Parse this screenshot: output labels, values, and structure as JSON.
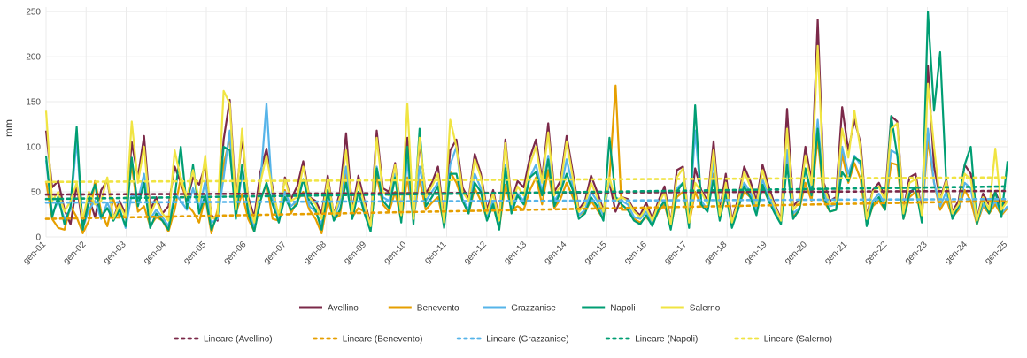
{
  "chart_data": {
    "type": "line",
    "title": "",
    "xlabel": "",
    "ylabel": "mm",
    "ylim": [
      0,
      255
    ],
    "xlim": [
      0,
      24
    ],
    "y_ticks": [
      0,
      50,
      100,
      150,
      200,
      250
    ],
    "x_ticks": [
      "gen-01",
      "gen-02",
      "gen-03",
      "gen-04",
      "gen-05",
      "gen-06",
      "gen-07",
      "gen-08",
      "gen-09",
      "gen-10",
      "gen-11",
      "gen-12",
      "gen-13",
      "gen-14",
      "gen-15",
      "gen-16",
      "gen-17",
      "gen-18",
      "gen-19",
      "gen-20",
      "gen-21",
      "gen-22",
      "gen-23",
      "gen-24",
      "gen-25"
    ],
    "grid": true,
    "legend_placement": "bottom",
    "series": [
      {
        "name": "Avellino",
        "color": "#7b2949",
        "values": [
          118,
          55,
          62,
          30,
          14,
          58,
          12,
          44,
          22,
          52,
          63,
          20,
          40,
          25,
          105,
          66,
          112,
          30,
          44,
          26,
          34,
          78,
          60,
          40,
          66,
          58,
          80,
          24,
          18,
          108,
          152,
          40,
          110,
          44,
          22,
          72,
          98,
          54,
          20,
          66,
          42,
          56,
          84,
          44,
          40,
          26,
          68,
          24,
          50,
          115,
          30,
          68,
          40,
          14,
          118,
          54,
          50,
          82,
          26,
          110,
          20,
          104,
          48,
          60,
          78,
          18,
          96,
          108,
          55,
          42,
          92,
          70,
          30,
          52,
          20,
          108,
          40,
          62,
          55,
          88,
          108,
          64,
          126,
          50,
          62,
          112,
          72,
          30,
          40,
          68,
          50,
          30,
          60,
          28,
          44,
          42,
          30,
          24,
          38,
          20,
          40,
          56,
          15,
          74,
          78,
          18,
          76,
          52,
          40,
          106,
          28,
          70,
          18,
          42,
          78,
          62,
          40,
          80,
          56,
          36,
          20,
          142,
          34,
          42,
          100,
          62,
          241,
          60,
          40,
          44,
          144,
          96,
          130,
          104,
          22,
          52,
          60,
          44,
          134,
          128,
          30,
          66,
          70,
          28,
          190,
          78,
          42,
          64,
          28,
          40,
          80,
          70,
          20,
          48,
          36,
          50,
          34,
          40
        ]
      },
      {
        "name": "Benevento",
        "color": "#e69f00",
        "values": [
          62,
          20,
          10,
          8,
          34,
          22,
          4,
          18,
          62,
          28,
          12,
          42,
          22,
          24,
          80,
          28,
          34,
          12,
          22,
          18,
          6,
          30,
          66,
          36,
          28,
          16,
          44,
          4,
          30,
          80,
          110,
          26,
          48,
          20,
          6,
          40,
          60,
          20,
          18,
          52,
          26,
          40,
          50,
          30,
          20,
          4,
          40,
          20,
          24,
          72,
          22,
          32,
          28,
          10,
          68,
          36,
          28,
          50,
          18,
          66,
          20,
          64,
          30,
          38,
          44,
          14,
          72,
          60,
          40,
          26,
          54,
          40,
          20,
          34,
          10,
          58,
          30,
          34,
          30,
          52,
          66,
          36,
          74,
          32,
          42,
          60,
          44,
          24,
          28,
          40,
          30,
          20,
          66,
          168,
          30,
          30,
          20,
          16,
          22,
          14,
          28,
          36,
          10,
          44,
          50,
          14,
          50,
          34,
          30,
          70,
          20,
          46,
          16,
          32,
          50,
          44,
          26,
          56,
          40,
          30,
          18,
          90,
          22,
          30,
          60,
          40,
          110,
          40,
          28,
          30,
          92,
          60,
          82,
          64,
          14,
          34,
          40,
          30,
          82,
          80,
          20,
          44,
          50,
          20,
          108,
          60,
          30,
          42,
          22,
          30,
          52,
          40,
          14,
          34,
          26,
          36,
          24,
          32
        ]
      },
      {
        "name": "Grazzanise",
        "color": "#56b4e9",
        "values": [
          85,
          25,
          40,
          20,
          30,
          108,
          10,
          30,
          40,
          20,
          38,
          22,
          32,
          10,
          48,
          40,
          70,
          20,
          30,
          22,
          12,
          48,
          40,
          30,
          54,
          30,
          62,
          16,
          20,
          66,
          118,
          24,
          70,
          30,
          10,
          60,
          148,
          40,
          20,
          50,
          34,
          40,
          64,
          34,
          28,
          14,
          50,
          20,
          40,
          78,
          20,
          50,
          30,
          10,
          78,
          44,
          40,
          70,
          20,
          84,
          18,
          78,
          40,
          50,
          60,
          14,
          80,
          100,
          42,
          30,
          70,
          54,
          22,
          40,
          14,
          80,
          30,
          48,
          40,
          66,
          80,
          50,
          90,
          40,
          50,
          86,
          56,
          24,
          30,
          50,
          40,
          24,
          62,
          44,
          40,
          36,
          22,
          20,
          28,
          16,
          30,
          40,
          12,
          54,
          60,
          14,
          118,
          40,
          30,
          84,
          22,
          56,
          14,
          34,
          60,
          50,
          30,
          64,
          44,
          30,
          16,
          96,
          26,
          32,
          74,
          50,
          130,
          50,
          34,
          36,
          100,
          70,
          90,
          80,
          18,
          40,
          48,
          36,
          96,
          92,
          24,
          50,
          54,
          22,
          120,
          60,
          34,
          50,
          24,
          32,
          60,
          54,
          16,
          36,
          28,
          40,
          26,
          34
        ]
      },
      {
        "name": "Napoli",
        "color": "#009e73",
        "values": [
          90,
          22,
          45,
          14,
          34,
          122,
          8,
          40,
          58,
          22,
          32,
          18,
          30,
          12,
          88,
          34,
          60,
          10,
          26,
          18,
          8,
          44,
          100,
          32,
          80,
          26,
          46,
          8,
          24,
          100,
          96,
          20,
          80,
          26,
          6,
          40,
          60,
          36,
          16,
          44,
          30,
          36,
          64,
          40,
          30,
          8,
          52,
          18,
          30,
          60,
          20,
          50,
          26,
          6,
          76,
          40,
          32,
          66,
          16,
          100,
          14,
          120,
          34,
          44,
          56,
          10,
          70,
          70,
          40,
          26,
          60,
          50,
          18,
          36,
          8,
          76,
          26,
          46,
          36,
          66,
          72,
          46,
          86,
          34,
          50,
          70,
          52,
          20,
          26,
          44,
          34,
          18,
          110,
          44,
          36,
          30,
          18,
          14,
          24,
          12,
          30,
          40,
          8,
          50,
          60,
          10,
          146,
          36,
          28,
          64,
          18,
          50,
          10,
          30,
          56,
          44,
          24,
          58,
          40,
          26,
          14,
          80,
          20,
          30,
          76,
          46,
          120,
          44,
          28,
          30,
          72,
          62,
          88,
          84,
          12,
          36,
          44,
          30,
          134,
          90,
          20,
          48,
          56,
          16,
          250,
          140,
          205,
          60,
          20,
          34,
          80,
          100,
          14,
          42,
          26,
          50,
          22,
          84
        ]
      },
      {
        "name": "Salerno",
        "color": "#f0e442",
        "values": [
          140,
          40,
          50,
          28,
          40,
          60,
          20,
          50,
          36,
          40,
          66,
          20,
          36,
          22,
          128,
          60,
          100,
          24,
          40,
          26,
          18,
          96,
          64,
          44,
          74,
          40,
          90,
          20,
          24,
          162,
          148,
          30,
          120,
          40,
          16,
          60,
          90,
          50,
          24,
          64,
          40,
          44,
          78,
          44,
          36,
          20,
          64,
          24,
          44,
          96,
          28,
          60,
          36,
          12,
          110,
          50,
          46,
          80,
          24,
          148,
          20,
          110,
          44,
          56,
          70,
          16,
          130,
          100,
          50,
          40,
          86,
          66,
          26,
          48,
          18,
          104,
          36,
          56,
          46,
          80,
          100,
          60,
          116,
          46,
          56,
          106,
          66,
          28,
          36,
          60,
          44,
          28,
          66,
          40,
          44,
          40,
          28,
          22,
          32,
          18,
          36,
          50,
          14,
          66,
          76,
          16,
          60,
          50,
          36,
          96,
          24,
          60,
          16,
          38,
          72,
          56,
          36,
          74,
          50,
          34,
          18,
          120,
          30,
          38,
          90,
          58,
          212,
          56,
          36,
          40,
          120,
          88,
          140,
          96,
          20,
          50,
          56,
          40,
          120,
          126,
          26,
          60,
          64,
          24,
          170,
          100,
          40,
          62,
          26,
          36,
          70,
          64,
          18,
          44,
          30,
          98,
          30,
          40
        ]
      }
    ],
    "trendlines": [
      {
        "name": "Lineare (Avellino)",
        "color": "#7b2949",
        "start": 47,
        "end": 51
      },
      {
        "name": "Lineare (Benevento)",
        "color": "#e69f00",
        "start": 20,
        "end": 40
      },
      {
        "name": "Lineare (Grazzanise)",
        "color": "#56b4e9",
        "start": 38,
        "end": 42
      },
      {
        "name": "Lineare (Napoli)",
        "color": "#009e73",
        "start": 42,
        "end": 56
      },
      {
        "name": "Lineare (Salerno)",
        "color": "#f0e442",
        "start": 61,
        "end": 66
      }
    ]
  }
}
